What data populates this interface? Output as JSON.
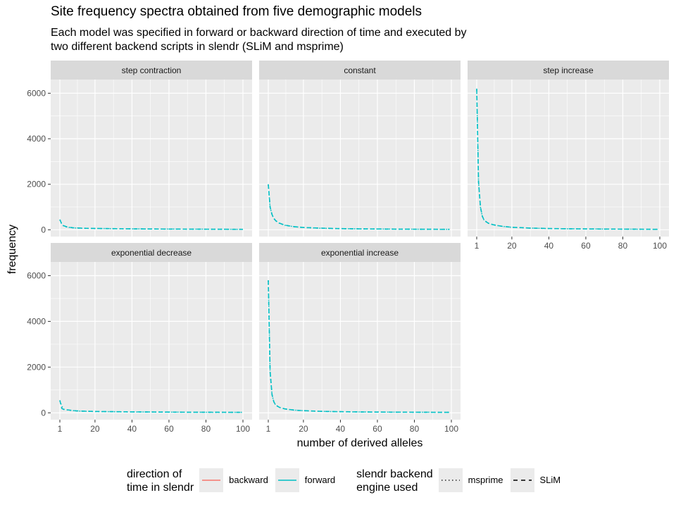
{
  "title": "Site frequency spectra obtained from five demographic models",
  "subtitle": [
    "Each model was specified in forward or backward direction of time and executed by",
    "two different backend scripts in slendr (SLiM and msprime)"
  ],
  "colors": {
    "backward": "#F8766D",
    "forward": "#00BFC4",
    "panel_bg": "#EBEBEB",
    "strip_bg": "#D9D9D9",
    "grid": "#FFFFFF"
  },
  "legend": {
    "direction": {
      "title": [
        "direction of",
        "time in slendr"
      ],
      "items": [
        {
          "label": "backward",
          "color": "#F8766D"
        },
        {
          "label": "forward",
          "color": "#00BFC4"
        }
      ]
    },
    "engine": {
      "title": [
        "slendr backend",
        "engine used"
      ],
      "items": [
        {
          "label": "msprime",
          "linetype": "dotted"
        },
        {
          "label": "SLiM",
          "linetype": "dashed"
        }
      ]
    }
  },
  "chart_data": {
    "type": "line",
    "title": "Site frequency spectra obtained from five demographic models",
    "xlabel": "number of derived alleles",
    "ylabel": "frequency",
    "xlim": [
      1,
      100
    ],
    "ylim": [
      -300,
      6600
    ],
    "x_ticks": [
      "1",
      "20",
      "40",
      "60",
      "80",
      "100"
    ],
    "x_tick_values": [
      1,
      20,
      40,
      60,
      80,
      100
    ],
    "y_ticks": [
      "0",
      "2000",
      "4000",
      "6000"
    ],
    "y_tick_values": [
      0,
      2000,
      4000,
      6000
    ],
    "grid": true,
    "legend_position": "bottom",
    "panels": [
      {
        "name": "step contraction",
        "series": [
          {
            "direction": "forward",
            "engine": "SLiM",
            "x": [
              1,
              2,
              3,
              5,
              8,
              10,
              15,
              20,
              30,
              40,
              50,
              60,
              70,
              80,
              90,
              100
            ],
            "y": [
              450,
              260,
              180,
              120,
              90,
              80,
              65,
              60,
              50,
              40,
              35,
              30,
              28,
              25,
              22,
              20
            ]
          },
          {
            "direction": "forward",
            "engine": "msprime",
            "x": [
              1,
              2,
              3,
              5,
              8,
              10,
              15,
              20,
              30,
              40,
              50,
              60,
              70,
              80,
              90,
              100
            ],
            "y": [
              440,
              250,
              170,
              115,
              88,
              78,
              62,
              58,
              48,
              40,
              34,
              30,
              27,
              24,
              21,
              18
            ]
          }
        ]
      },
      {
        "name": "constant",
        "series": [
          {
            "direction": "forward",
            "engine": "SLiM",
            "x": [
              1,
              2,
              3,
              4,
              5,
              7,
              10,
              15,
              20,
              30,
              40,
              50,
              60,
              70,
              80,
              90,
              99
            ],
            "y": [
              2000,
              1000,
              670,
              500,
              400,
              290,
              200,
              135,
              100,
              70,
              50,
              40,
              33,
              28,
              25,
              22,
              20
            ]
          },
          {
            "direction": "forward",
            "engine": "msprime",
            "x": [
              1,
              2,
              3,
              4,
              5,
              7,
              10,
              15,
              20,
              30,
              40,
              50,
              60,
              70,
              80,
              90,
              99
            ],
            "y": [
              1980,
              990,
              660,
              495,
              395,
              285,
              198,
              132,
              99,
              66,
              50,
              40,
              33,
              28,
              25,
              22,
              20
            ]
          }
        ]
      },
      {
        "name": "step increase",
        "series": [
          {
            "direction": "forward",
            "engine": "SLiM",
            "x": [
              1,
              2,
              3,
              4,
              5,
              7,
              10,
              15,
              20,
              30,
              40,
              50,
              60,
              70,
              80,
              90,
              99
            ],
            "y": [
              6200,
              2100,
              1000,
              600,
              420,
              300,
              220,
              150,
              110,
              75,
              55,
              45,
              38,
              32,
              28,
              24,
              20
            ]
          },
          {
            "direction": "forward",
            "engine": "msprime",
            "x": [
              1,
              2,
              3,
              4,
              5,
              7,
              10,
              15,
              20,
              30,
              40,
              50,
              60,
              70,
              80,
              90,
              99
            ],
            "y": [
              6150,
              2080,
              990,
              595,
              415,
              295,
              215,
              148,
              108,
              73,
              54,
              44,
              37,
              31,
              27,
              23,
              20
            ]
          }
        ]
      },
      {
        "name": "exponential decrease",
        "series": [
          {
            "direction": "forward",
            "engine": "SLiM",
            "x": [
              1,
              2,
              3,
              5,
              8,
              10,
              15,
              20,
              30,
              40,
              50,
              60,
              70,
              80,
              90,
              100
            ],
            "y": [
              550,
              200,
              150,
              130,
              100,
              85,
              70,
              60,
              50,
              42,
              36,
              32,
              28,
              25,
              22,
              20
            ]
          },
          {
            "direction": "forward",
            "engine": "msprime",
            "x": [
              1,
              2,
              3,
              5,
              8,
              10,
              15,
              20,
              30,
              40,
              50,
              60,
              70,
              80,
              90,
              100
            ],
            "y": [
              540,
              300,
              160,
              125,
              98,
              82,
              68,
              58,
              48,
              40,
              35,
              31,
              27,
              24,
              21,
              19
            ]
          }
        ]
      },
      {
        "name": "exponential increase",
        "series": [
          {
            "direction": "forward",
            "engine": "SLiM",
            "x": [
              1,
              2,
              3,
              4,
              5,
              7,
              10,
              15,
              20,
              30,
              40,
              50,
              60,
              70,
              80,
              90,
              99
            ],
            "y": [
              5800,
              1800,
              800,
              480,
              340,
              240,
              170,
              120,
              95,
              65,
              50,
              40,
              34,
              30,
              26,
              23,
              20
            ]
          },
          {
            "direction": "forward",
            "engine": "msprime",
            "x": [
              1,
              2,
              3,
              4,
              5,
              7,
              10,
              15,
              20,
              30,
              40,
              50,
              60,
              70,
              80,
              90,
              99
            ],
            "y": [
              5780,
              1790,
              795,
              475,
              335,
              238,
              168,
              118,
              94,
              64,
              49,
              40,
              34,
              30,
              26,
              23,
              20
            ]
          }
        ]
      }
    ]
  }
}
